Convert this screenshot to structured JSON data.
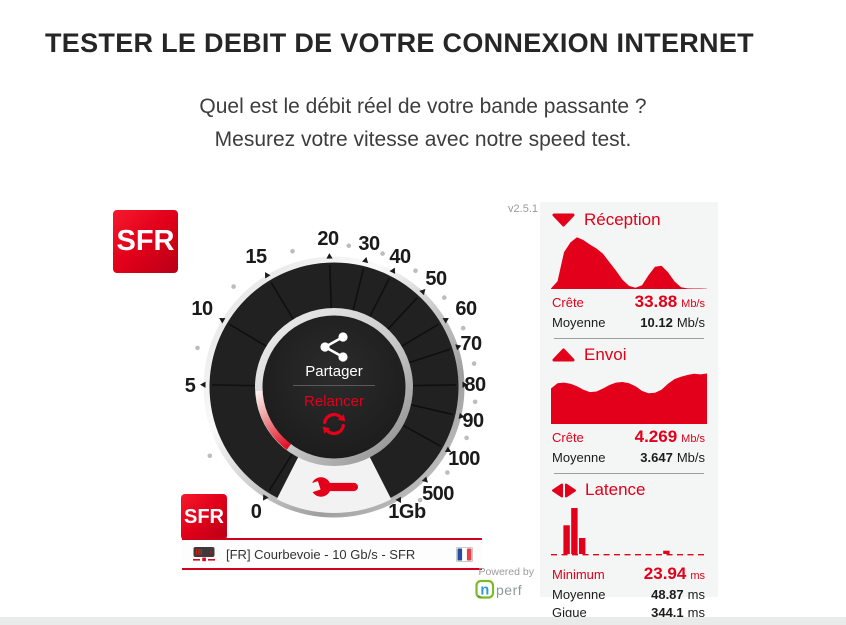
{
  "page": {
    "title": "TESTER LE DEBIT DE VOTRE CONNEXION INTERNET",
    "subtitle_line1": "Quel est le débit réel de votre bande passante ?",
    "subtitle_line2": "Mesurez votre vitesse avec notre speed test.",
    "version": "v2.5.1",
    "powered_by": "Powered by",
    "brand_n": "n",
    "brand_perf": "perf"
  },
  "sfr": {
    "logo_text": "SFR"
  },
  "gauge": {
    "labels": [
      "0",
      "5",
      "10",
      "15",
      "20",
      "30",
      "40",
      "50",
      "60",
      "70",
      "80",
      "90",
      "100",
      "500",
      "1Gb"
    ],
    "share_label": "Partager",
    "restart_label": "Relancer"
  },
  "server_bar": {
    "text": "[FR] Courbevoie - 10 Gb/s - SFR",
    "flag": "France"
  },
  "panel": {
    "reception": {
      "title": "Réception",
      "peak_label": "Crête",
      "peak_value": "33.88",
      "peak_unit": "Mb/s",
      "avg_label": "Moyenne",
      "avg_value": "10.12",
      "avg_unit": "Mb/s"
    },
    "envoi": {
      "title": "Envoi",
      "peak_label": "Crête",
      "peak_value": "4.269",
      "peak_unit": "Mb/s",
      "avg_label": "Moyenne",
      "avg_value": "3.647",
      "avg_unit": "Mb/s"
    },
    "latence": {
      "title": "Latence",
      "min_label": "Minimum",
      "min_value": "23.94",
      "min_unit": "ms",
      "avg_label": "Moyenne",
      "avg_value": "48.87",
      "avg_unit": "ms",
      "jitter_label": "Gigue",
      "jitter_value": "344.1",
      "jitter_unit": "ms"
    }
  },
  "colors": {
    "accent_red": "#e2001a",
    "panel_bg": "#f4f5f5",
    "dial_dark": "#212121"
  },
  "chart_data": [
    {
      "type": "area",
      "bind": "reception",
      "title": "Réception",
      "unit": "Mb/s",
      "peak": 33.88,
      "average": 10.12,
      "ylim": [
        0,
        34
      ],
      "color": "#e2001a",
      "y": [
        0.4,
        5,
        24,
        30.5,
        33.9,
        32,
        29,
        26.5,
        23,
        17.5,
        12,
        6,
        2,
        0.8,
        2.5,
        9,
        14.5,
        15.2,
        11,
        5,
        1.2,
        0.4,
        0.3,
        0.3,
        0.2
      ]
    },
    {
      "type": "area",
      "bind": "envoi",
      "title": "Envoi",
      "unit": "Mb/s",
      "peak": 4.269,
      "average": 3.647,
      "ylim": [
        0,
        4.4
      ],
      "color": "#e2001a",
      "y": [
        3.0,
        3.45,
        3.5,
        3.4,
        3.2,
        2.9,
        2.7,
        2.75,
        3.0,
        3.3,
        3.5,
        3.55,
        3.45,
        3.2,
        2.8,
        2.6,
        2.65,
        2.9,
        3.4,
        3.8,
        4.0,
        4.15,
        4.25,
        4.2,
        4.27
      ]
    },
    {
      "type": "bar",
      "bind": "latence",
      "title": "Latence",
      "unit": "ms",
      "minimum": 23.94,
      "average": 48.87,
      "jitter": 344.1,
      "ylim": [
        0,
        344
      ],
      "baseline": "dashed",
      "color": "#e2001a",
      "bars": [
        {
          "x": 0.1,
          "value": 215
        },
        {
          "x": 0.15,
          "value": 344
        },
        {
          "x": 0.2,
          "value": 120
        },
        {
          "x": 0.74,
          "value": 25
        }
      ]
    }
  ]
}
